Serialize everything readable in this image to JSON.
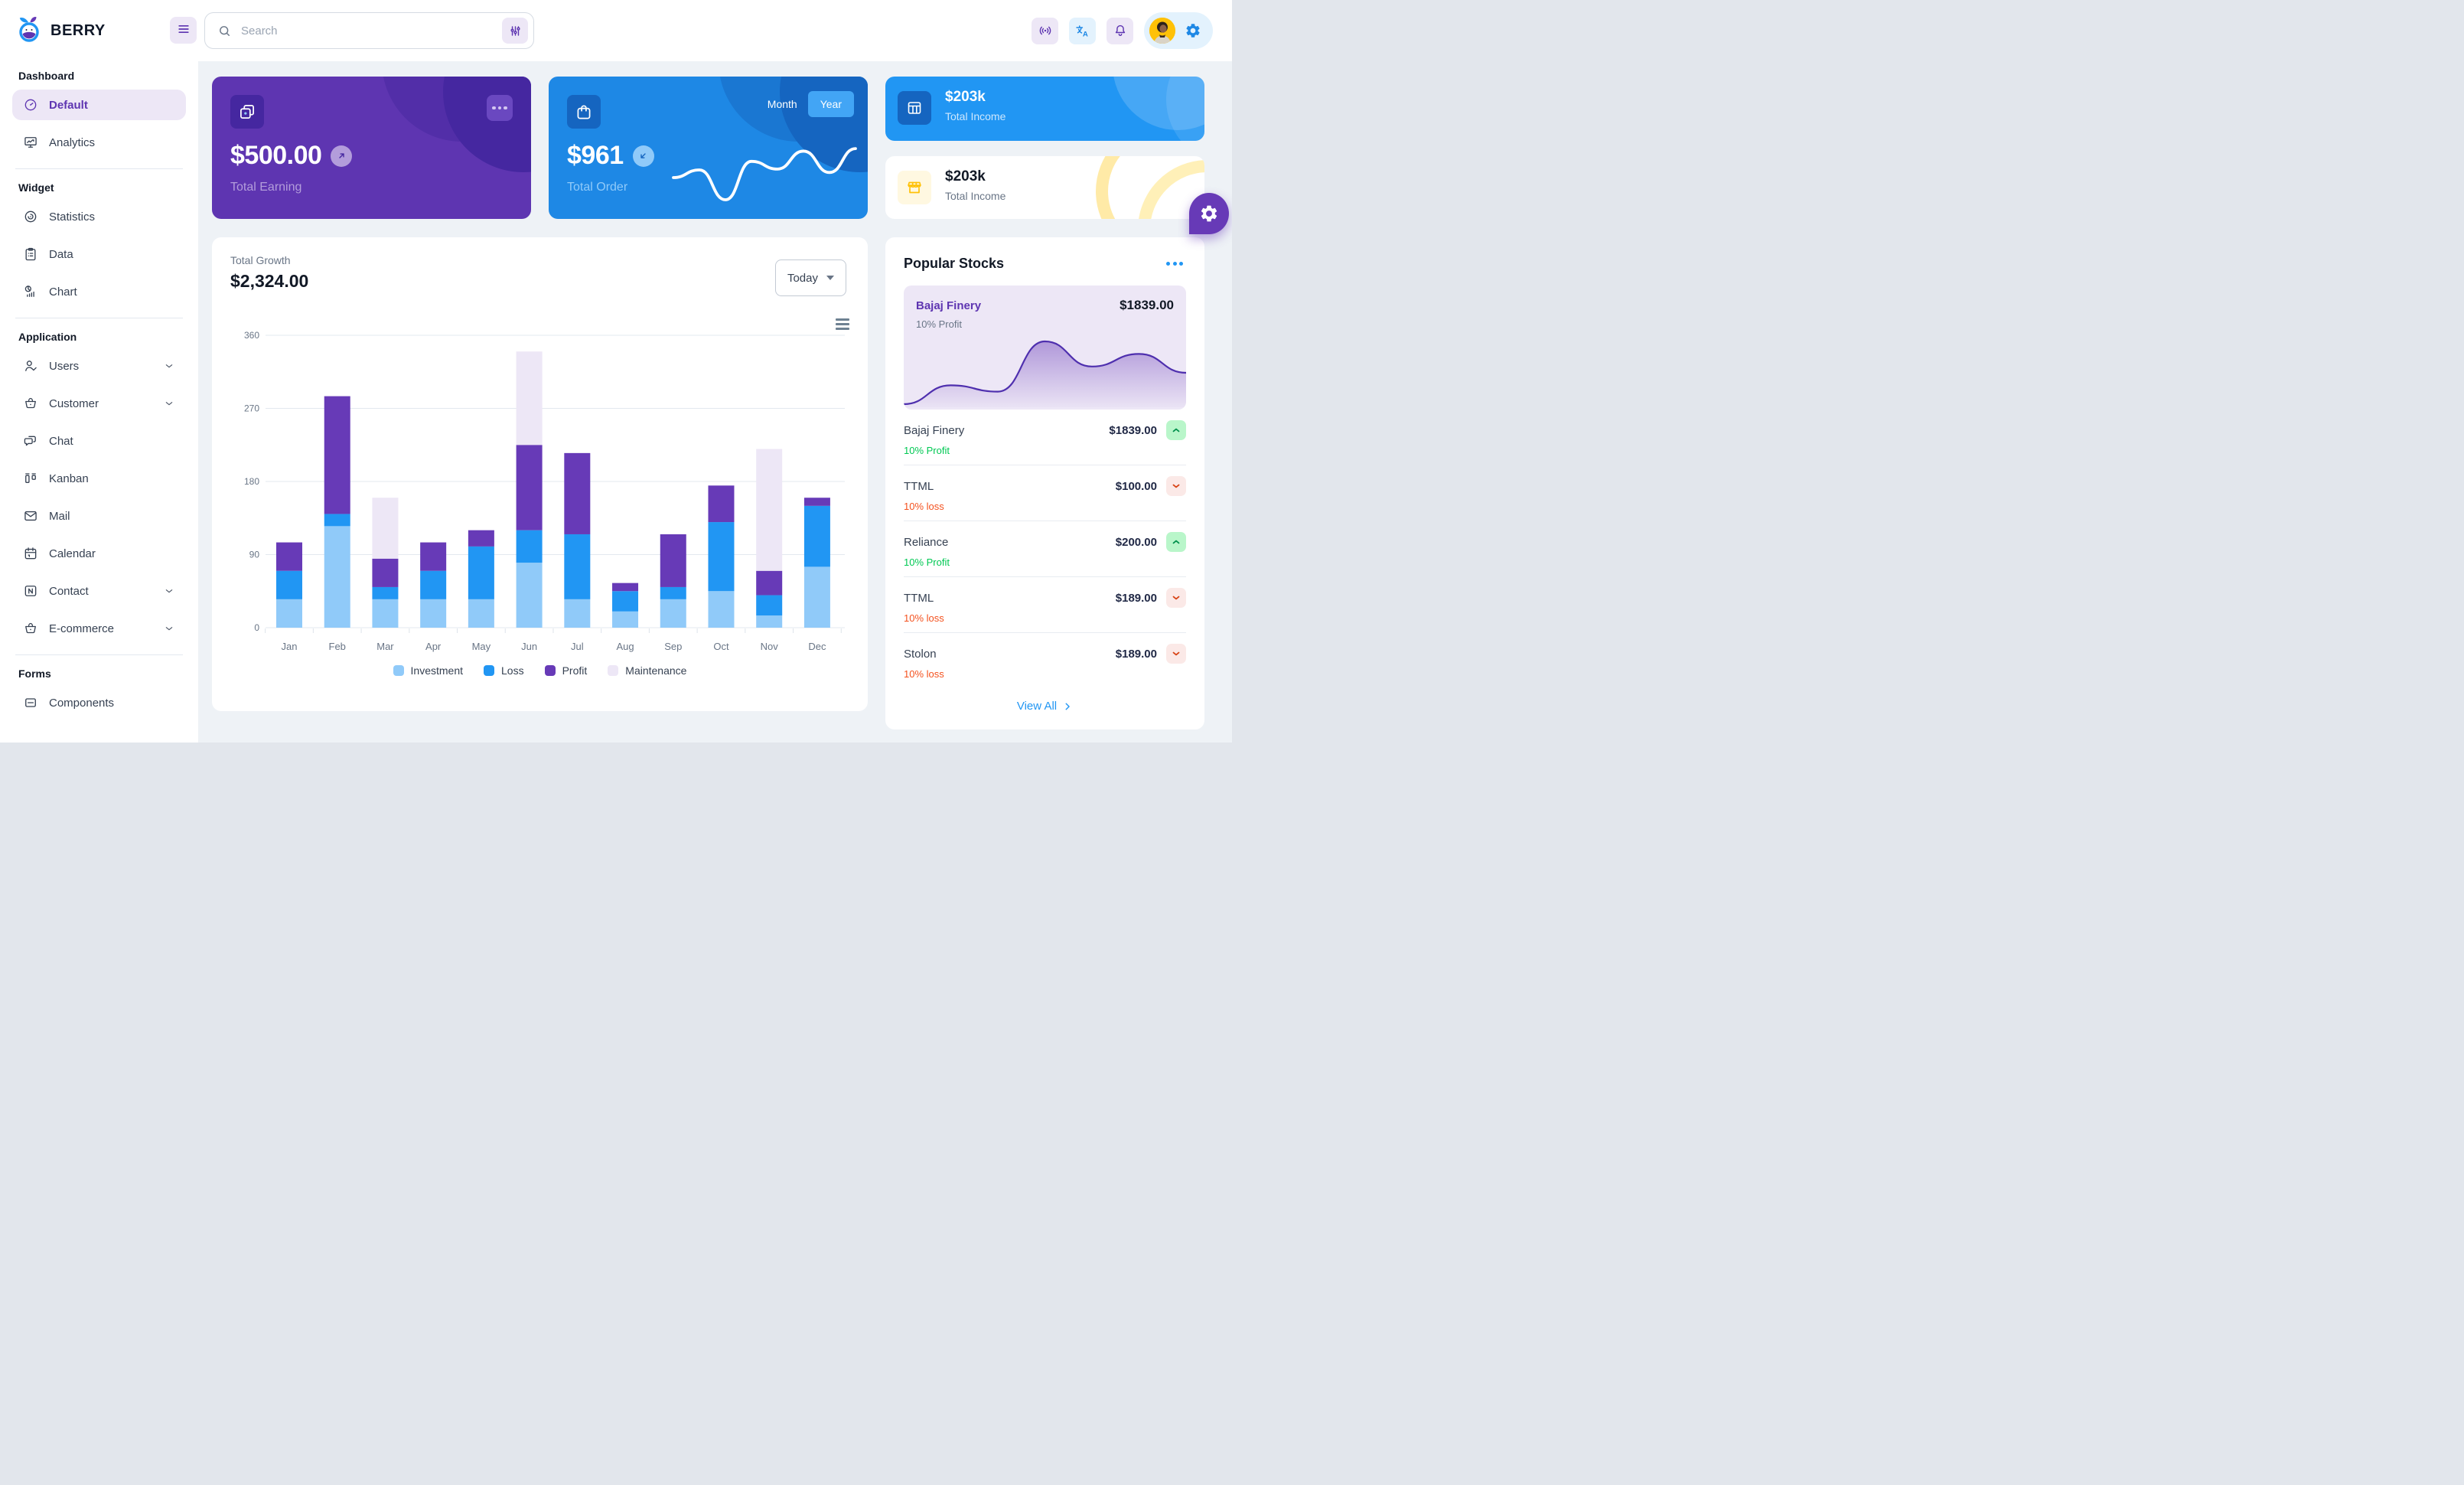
{
  "header": {
    "brand": "BERRY",
    "search_placeholder": "Search",
    "icons": [
      "menu-icon",
      "search-icon",
      "filter-sliders-icon",
      "broadcast-icon",
      "translate-icon",
      "notification-bell-icon",
      "avatar",
      "settings-icon"
    ]
  },
  "sidebar": {
    "sections": [
      {
        "title": "Dashboard",
        "divider": true,
        "items": [
          {
            "label": "Default",
            "icon": "gauge-icon",
            "active": true
          },
          {
            "label": "Analytics",
            "icon": "analytics-icon"
          }
        ]
      },
      {
        "title": "Widget",
        "divider": true,
        "items": [
          {
            "label": "Statistics",
            "icon": "statistics-icon"
          },
          {
            "label": "Data",
            "icon": "data-icon"
          },
          {
            "label": "Chart",
            "icon": "chart-icon"
          }
        ]
      },
      {
        "title": "Application",
        "divider": true,
        "items": [
          {
            "label": "Users",
            "icon": "users-icon",
            "chevron": true
          },
          {
            "label": "Customer",
            "icon": "customer-icon",
            "chevron": true
          },
          {
            "label": "Chat",
            "icon": "chat-icon"
          },
          {
            "label": "Kanban",
            "icon": "kanban-icon"
          },
          {
            "label": "Mail",
            "icon": "mail-icon"
          },
          {
            "label": "Calendar",
            "icon": "calendar-icon"
          },
          {
            "label": "Contact",
            "icon": "contact-icon",
            "chevron": true
          },
          {
            "label": "E-commerce",
            "icon": "ecommerce-icon",
            "chevron": true
          }
        ]
      },
      {
        "title": "Forms",
        "divider": false,
        "items": [
          {
            "label": "Components",
            "icon": "components-icon"
          }
        ]
      }
    ]
  },
  "cards": {
    "earning": {
      "amount": "$500.00",
      "label": "Total Earning",
      "icon": "wallet-cards-icon"
    },
    "order": {
      "amount": "$961",
      "label": "Total Order",
      "icon": "shopping-bag-icon",
      "toggle": [
        "Month",
        "Year"
      ],
      "selected": "Year"
    },
    "income_blue": {
      "amount": "$203k",
      "label": "Total Income",
      "icon": "table-layout-icon"
    },
    "income_light": {
      "amount": "$203k",
      "label": "Total Income",
      "icon": "storefront-icon"
    }
  },
  "growth": {
    "label": "Total Growth",
    "value": "$2,324.00",
    "range": "Today"
  },
  "stocks": {
    "title": "Popular Stocks",
    "feature": {
      "name": "Bajaj Finery",
      "price": "$1839.00",
      "subtitle": "10% Profit"
    },
    "items": [
      {
        "name": "Bajaj Finery",
        "price": "$1839.00",
        "subtitle": "10% Profit",
        "direction": "up"
      },
      {
        "name": "TTML",
        "price": "$100.00",
        "subtitle": "10% loss",
        "direction": "down"
      },
      {
        "name": "Reliance",
        "price": "$200.00",
        "subtitle": "10% Profit",
        "direction": "up"
      },
      {
        "name": "TTML",
        "price": "$189.00",
        "subtitle": "10% loss",
        "direction": "down"
      },
      {
        "name": "Stolon",
        "price": "$189.00",
        "subtitle": "10% loss",
        "direction": "down"
      }
    ],
    "view_all": "View All"
  },
  "chart_data": [
    {
      "type": "bar",
      "stacked": true,
      "title": "Total Growth",
      "total_label": "$2,324.00",
      "categories": [
        "Jan",
        "Feb",
        "Mar",
        "Apr",
        "May",
        "Jun",
        "Jul",
        "Aug",
        "Sep",
        "Oct",
        "Nov",
        "Dec"
      ],
      "series": [
        {
          "name": "Investment",
          "color": "#90caf9",
          "values": [
            35,
            125,
            35,
            35,
            35,
            80,
            35,
            20,
            35,
            45,
            15,
            75
          ]
        },
        {
          "name": "Loss",
          "color": "#2196f3",
          "values": [
            35,
            15,
            15,
            35,
            65,
            40,
            80,
            25,
            15,
            85,
            25,
            75
          ]
        },
        {
          "name": "Profit",
          "color": "#673ab7",
          "values": [
            35,
            145,
            35,
            35,
            20,
            105,
            100,
            10,
            65,
            45,
            30,
            10
          ]
        },
        {
          "name": "Maintenance",
          "color": "#ede7f6",
          "values": [
            0,
            0,
            75,
            0,
            0,
            115,
            0,
            0,
            0,
            0,
            150,
            0
          ]
        }
      ],
      "xlabel": "",
      "ylabel": "",
      "ylim": [
        0,
        360
      ],
      "yticks": [
        0,
        90,
        180,
        270,
        360
      ],
      "grid": "horizontal",
      "legend_position": "bottom"
    },
    {
      "type": "area",
      "title": "Bajaj Finery sparkline",
      "values": [
        0,
        15,
        10,
        50,
        30,
        40,
        25
      ],
      "ylim": [
        0,
        50
      ],
      "color": "#5e35b1",
      "grid": "off",
      "legend_position": "none"
    },
    {
      "type": "line",
      "title": "Total Order - Year sparkline",
      "values": [
        35,
        44,
        9,
        54,
        45,
        66,
        41,
        69
      ],
      "ylim": [
        0,
        70
      ],
      "color": "#ffffff",
      "grid": "off",
      "legend_position": "none"
    }
  ],
  "colors": {
    "secondary_dark": "#5e35b1",
    "secondary_800": "#4527a0",
    "secondary": "#673ab7",
    "secondary_light": "#ede7f6",
    "secondary_200": "#b39ddb",
    "primary": "#2196f3",
    "primary_dark": "#1e88e5",
    "primary_800": "#1565c0",
    "primary_light": "#e3f2fd",
    "primary_200": "#90caf9",
    "warning": "#ffc107",
    "warning_light": "#fff8e1",
    "success": "#00c853",
    "success_light": "#b9f6ca",
    "loss_orange": "#f4511e",
    "loss_light": "#fbe9e7",
    "background": "#eef2f6",
    "text_dark": "#121926",
    "text": "#364152",
    "text_muted": "#697586"
  }
}
